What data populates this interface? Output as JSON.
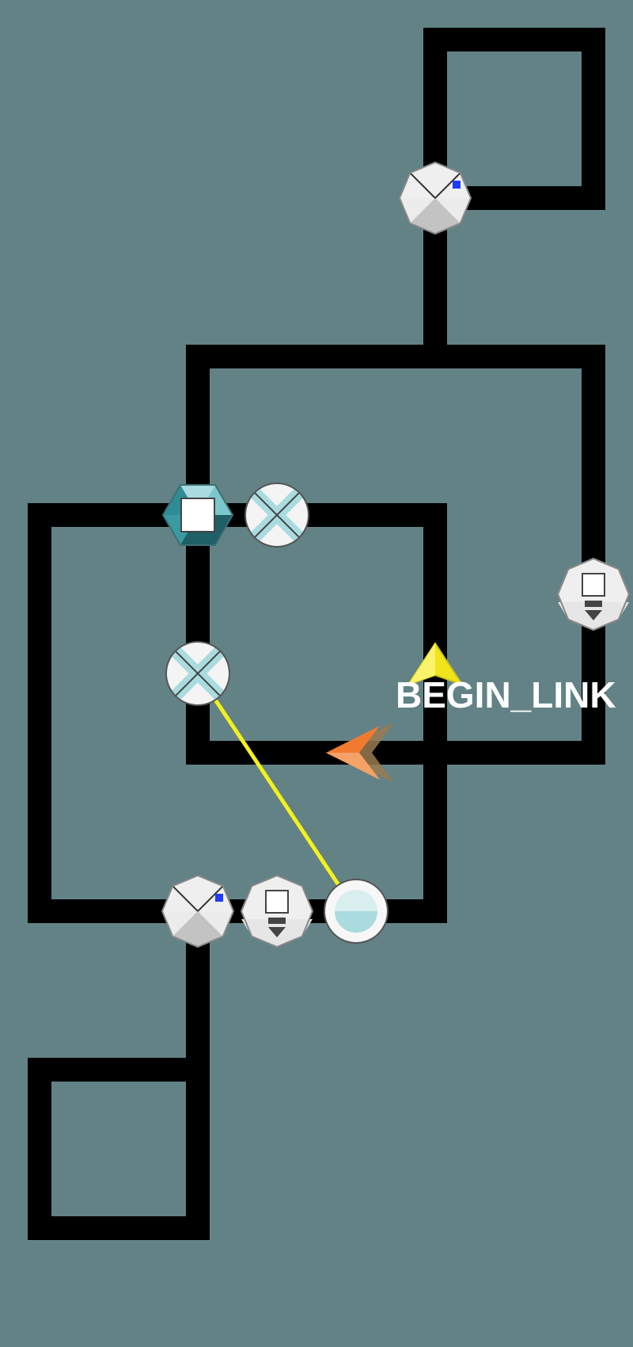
{
  "status_text": "BEGIN_LINK",
  "colors": {
    "background": "#628285",
    "track": "#000000",
    "link_line": "#f5f01e",
    "status_text": "#ffffff",
    "selection_marker": "#f0e51c",
    "player_ship": "#f07a30",
    "node_light": "#efefef",
    "node_shade": "#c3c3c3",
    "accent_blue": "#1f3cff",
    "cyan_light": "#a9dbdf",
    "teal_dark": "#2e8d94"
  },
  "nodes": [
    {
      "id": "router-top",
      "kind": "router",
      "icon": "router-icon"
    },
    {
      "id": "terminal-right",
      "kind": "terminal",
      "icon": "terminal-icon"
    },
    {
      "id": "hub-teal",
      "kind": "hub",
      "icon": "hex-hub-icon"
    },
    {
      "id": "switch-upper",
      "kind": "switch",
      "icon": "switch-icon"
    },
    {
      "id": "switch-middle",
      "kind": "switch",
      "icon": "switch-icon"
    },
    {
      "id": "router-bottom",
      "kind": "router",
      "icon": "router-icon"
    },
    {
      "id": "terminal-bottom",
      "kind": "terminal",
      "icon": "terminal-icon"
    },
    {
      "id": "port-bottom",
      "kind": "port",
      "icon": "port-icon"
    }
  ],
  "link": {
    "from": "switch-middle",
    "to": "port-bottom"
  },
  "cursor": {
    "icon": "selection-arrow-icon"
  },
  "player": {
    "icon": "player-ship-icon",
    "facing": "left"
  }
}
